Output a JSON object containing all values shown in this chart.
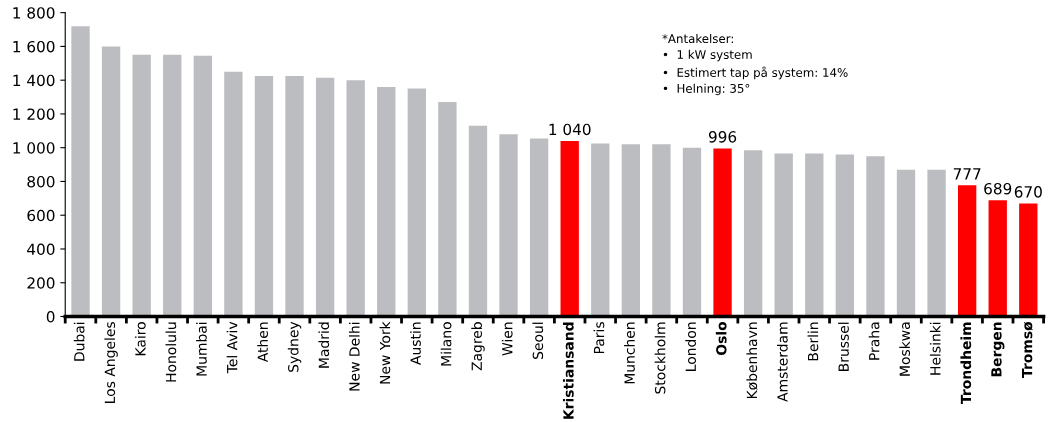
{
  "chart_data": {
    "type": "bar",
    "categories": [
      "Dubai",
      "Los Angeles",
      "Kairo",
      "Honolulu",
      "Mumbai",
      "Tel Aviv",
      "Athen",
      "Sydney",
      "Madrid",
      "New Delhi",
      "New York",
      "Austin",
      "Milano",
      "Zagreb",
      "Wien",
      "Seoul",
      "Kristiansand",
      "Paris",
      "Munchen",
      "Stockholm",
      "London",
      "Oslo",
      "København",
      "Amsterdam",
      "Berlin",
      "Brussel",
      "Praha",
      "Moskwa",
      "Helsinki",
      "Trondheim",
      "Bergen",
      "Tromsø"
    ],
    "values": [
      1720,
      1600,
      1550,
      1550,
      1545,
      1450,
      1425,
      1425,
      1415,
      1400,
      1360,
      1350,
      1270,
      1130,
      1080,
      1055,
      1040,
      1025,
      1020,
      1020,
      1000,
      996,
      985,
      965,
      965,
      960,
      950,
      870,
      870,
      777,
      689,
      670
    ],
    "colors": [
      "#bcbdc0",
      "#bcbdc0",
      "#bcbdc0",
      "#bcbdc0",
      "#bcbdc0",
      "#bcbdc0",
      "#bcbdc0",
      "#bcbdc0",
      "#bcbdc0",
      "#bcbdc0",
      "#bcbdc0",
      "#bcbdc0",
      "#bcbdc0",
      "#bcbdc0",
      "#bcbdc0",
      "#bcbdc0",
      "#ff0000",
      "#bcbdc0",
      "#bcbdc0",
      "#bcbdc0",
      "#bcbdc0",
      "#ff0000",
      "#bcbdc0",
      "#bcbdc0",
      "#bcbdc0",
      "#bcbdc0",
      "#bcbdc0",
      "#bcbdc0",
      "#bcbdc0",
      "#ff0000",
      "#ff0000",
      "#ff0000"
    ],
    "value_labels": [
      null,
      null,
      null,
      null,
      null,
      null,
      null,
      null,
      null,
      null,
      null,
      null,
      null,
      null,
      null,
      null,
      "1 040",
      null,
      null,
      null,
      null,
      "996",
      null,
      null,
      null,
      null,
      null,
      null,
      null,
      "777",
      "689",
      "670"
    ],
    "ylim": [
      0,
      1800
    ],
    "yticks": [
      0,
      200,
      400,
      600,
      800,
      {
        "value": 1000,
        "label": "1 000"
      },
      {
        "value": 1200,
        "label": "1 200"
      },
      {
        "value": 1400,
        "label": "1 400"
      },
      {
        "value": 1600,
        "label": "1 600"
      },
      {
        "value": 1800,
        "label": "1 800"
      }
    ],
    "annotations": [
      "*Antakelser:\n•  1 kW system\n•  Estimert tap på system: 14%\n•  Helning: 35°"
    ],
    "grid": false,
    "legend": false
  }
}
